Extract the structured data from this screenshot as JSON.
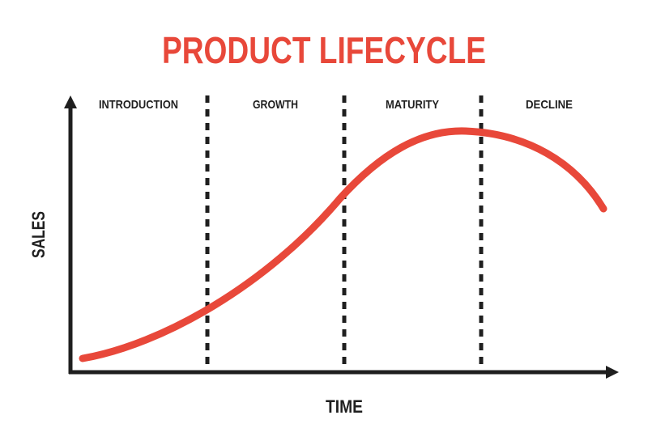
{
  "title": "PRODUCT LIFECYCLE",
  "stages": [
    "INTRODUCTION",
    "GROWTH",
    "MATURITY",
    "DECLINE"
  ],
  "axes": {
    "y_label": "SALES",
    "x_label": "TIME"
  }
}
